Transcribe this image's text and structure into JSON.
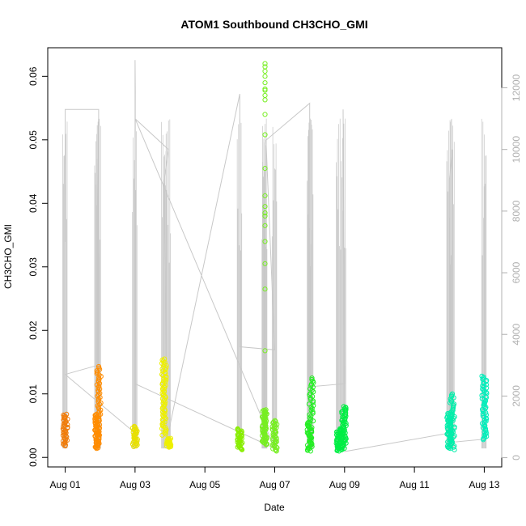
{
  "chart_data": {
    "type": "scatter",
    "title": "ATOM1 Southbound CH3CHO_GMI",
    "xlabel": "Date",
    "ylabel": "CH3CHO_GMI",
    "x_axis": {
      "range": [
        "2016-07-31T12:00",
        "2016-08-13T12:00"
      ],
      "ticks": [
        {
          "date": "2016-08-01",
          "label": "Aug 01"
        },
        {
          "date": "2016-08-03",
          "label": "Aug 03"
        },
        {
          "date": "2016-08-05",
          "label": "Aug 05"
        },
        {
          "date": "2016-08-07",
          "label": "Aug 07"
        },
        {
          "date": "2016-08-09",
          "label": "Aug 09"
        },
        {
          "date": "2016-08-11",
          "label": "Aug 11"
        },
        {
          "date": "2016-08-13",
          "label": "Aug 13"
        }
      ]
    },
    "y_axis_left": {
      "range": [
        -0.0015,
        0.0645
      ],
      "ticks": [
        {
          "value": 0.0,
          "label": "0.00"
        },
        {
          "value": 0.01,
          "label": "0.01"
        },
        {
          "value": 0.02,
          "label": "0.02"
        },
        {
          "value": 0.03,
          "label": "0.03"
        },
        {
          "value": 0.04,
          "label": "0.04"
        },
        {
          "value": 0.05,
          "label": "0.05"
        },
        {
          "value": 0.06,
          "label": "0.06"
        }
      ]
    },
    "y_axis_right": {
      "range": [
        -300,
        13300
      ],
      "color": "#b0b0b0",
      "ticks": [
        {
          "value": 0,
          "label": "0"
        },
        {
          "value": 2000,
          "label": "2000"
        },
        {
          "value": 4000,
          "label": "4000"
        },
        {
          "value": 6000,
          "label": "6000"
        },
        {
          "value": 8000,
          "label": "8000"
        },
        {
          "value": 10000,
          "label": "10000"
        },
        {
          "value": 12000,
          "label": "12000"
        }
      ]
    },
    "grid": false,
    "marker": "open-circle",
    "altitude_line_color": "#c8c8c8",
    "flights": [
      {
        "date": "2016-08-01",
        "color": "#f07c0a",
        "clusters": [
          {
            "t": "2016-08-01T00:00",
            "min": 0.0018,
            "max": 0.0068,
            "n": 40
          }
        ]
      },
      {
        "date": "2016-08-01",
        "color": "#ff8c00",
        "clusters": [
          {
            "t": "2016-08-01T22:00",
            "min": 0.0014,
            "max": 0.0068,
            "n": 70
          },
          {
            "t": "2016-08-01T23:00",
            "min": 0.0068,
            "max": 0.0143,
            "n": 35
          }
        ]
      },
      {
        "date": "2016-08-03",
        "color": "#e8e000",
        "clusters": [
          {
            "t": "2016-08-03T00:00",
            "min": 0.0017,
            "max": 0.0049,
            "n": 35
          }
        ]
      },
      {
        "date": "2016-08-03",
        "color": "#eef000",
        "clusters": [
          {
            "t": "2016-08-03T20:00",
            "min": 0.0035,
            "max": 0.0155,
            "n": 70
          },
          {
            "t": "2016-08-03T23:00",
            "min": 0.0016,
            "max": 0.003,
            "n": 30
          }
        ]
      },
      {
        "date": "2016-08-06",
        "color": "#88ee00",
        "clusters": [
          {
            "t": "2016-08-06T00:00",
            "min": 0.0012,
            "max": 0.0045,
            "n": 40
          }
        ]
      },
      {
        "date": "2016-08-06",
        "color": "#77ee22",
        "clusters": [
          {
            "t": "2016-08-06T17:00",
            "min": 0.002,
            "max": 0.0075,
            "n": 70
          },
          {
            "t": "2016-08-06T17:20",
            "values": [
              0.0168,
              0.0265,
              0.0305,
              0.034,
              0.0365,
              0.038,
              0.0385,
              0.0395,
              0.0412,
              0.0455,
              0.0508,
              0.054,
              0.0563,
              0.057,
              0.0578,
              0.058,
              0.059,
              0.06,
              0.0608,
              0.0615,
              0.062
            ]
          },
          {
            "t": "2016-08-07T00:00",
            "min": 0.001,
            "max": 0.0058,
            "n": 40
          }
        ]
      },
      {
        "date": "2016-08-08",
        "color": "#22ee22",
        "clusters": [
          {
            "t": "2016-08-08T00:00",
            "min": 0.001,
            "max": 0.0055,
            "n": 40
          },
          {
            "t": "2016-08-08T01:00",
            "min": 0.0055,
            "max": 0.0125,
            "n": 30
          }
        ]
      },
      {
        "date": "2016-08-09",
        "color": "#00ee44",
        "clusters": [
          {
            "t": "2016-08-08T20:00",
            "min": 0.001,
            "max": 0.0045,
            "n": 45
          },
          {
            "t": "2016-08-08T23:30",
            "min": 0.0012,
            "max": 0.008,
            "n": 60
          }
        ]
      },
      {
        "date": "2016-08-12",
        "color": "#00eeaa",
        "clusters": [
          {
            "t": "2016-08-12T00:00",
            "min": 0.0015,
            "max": 0.007,
            "n": 60
          },
          {
            "t": "2016-08-12T02:00",
            "min": 0.0012,
            "max": 0.01,
            "n": 45
          }
        ]
      },
      {
        "date": "2016-08-13",
        "color": "#00eebb",
        "clusters": [
          {
            "t": "2016-08-13T00:00",
            "min": 0.0028,
            "max": 0.0128,
            "n": 60
          }
        ]
      }
    ],
    "altitude_m": [
      {
        "t": "2016-07-31T23:50",
        "alt": 7000
      },
      {
        "t": "2016-08-01T00:00",
        "alt": 11300
      },
      {
        "t": "2016-08-01T23:00",
        "alt": 11300
      },
      {
        "t": "2016-08-01T23:00",
        "alt": 4000
      },
      {
        "t": "2016-08-01T22:00",
        "alt": 9700
      },
      {
        "t": "2016-08-01T22:30",
        "alt": 3000
      },
      {
        "t": "2016-08-01T00:00",
        "alt": 2700
      },
      {
        "t": "2016-08-03T00:00",
        "alt": 800
      },
      {
        "t": "2016-08-03T00:00",
        "alt": 12900
      },
      {
        "t": "2016-08-03T00:10",
        "alt": 11900
      },
      {
        "t": "2016-08-03T00:00",
        "alt": 2400
      },
      {
        "t": "2016-08-07T00:00",
        "alt": 300
      },
      {
        "t": "2016-08-03T00:00",
        "alt": 11000
      },
      {
        "t": "2016-08-03T23:00",
        "alt": 10000
      },
      {
        "t": "2016-08-03T20:00",
        "alt": 9000
      },
      {
        "t": "2016-08-03T22:00",
        "alt": 600
      },
      {
        "t": "2016-08-06T00:00",
        "alt": 11800
      },
      {
        "t": "2016-08-06T00:00",
        "alt": 3600
      },
      {
        "t": "2016-08-07T00:00",
        "alt": 3500
      },
      {
        "t": "2016-08-06T18:00",
        "alt": 10300
      },
      {
        "t": "2016-08-08T00:00",
        "alt": 11500
      },
      {
        "t": "2016-08-08T00:00",
        "alt": 2300
      },
      {
        "t": "2016-08-09T00:00",
        "alt": 2400
      },
      {
        "t": "2016-08-08T23:00",
        "alt": 11300
      },
      {
        "t": "2016-08-09T00:00",
        "alt": 200
      },
      {
        "t": "2016-08-12T00:00",
        "alt": 800
      },
      {
        "t": "2016-08-12T00:00",
        "alt": 9000
      },
      {
        "t": "2016-08-12T02:00",
        "alt": 10000
      },
      {
        "t": "2016-08-12T02:00",
        "alt": 500
      },
      {
        "t": "2016-08-13T00:00",
        "alt": 600
      },
      {
        "t": "2016-08-13T00:00",
        "alt": 8800
      },
      {
        "t": "2016-08-13T00:00",
        "alt": 1100
      }
    ]
  }
}
